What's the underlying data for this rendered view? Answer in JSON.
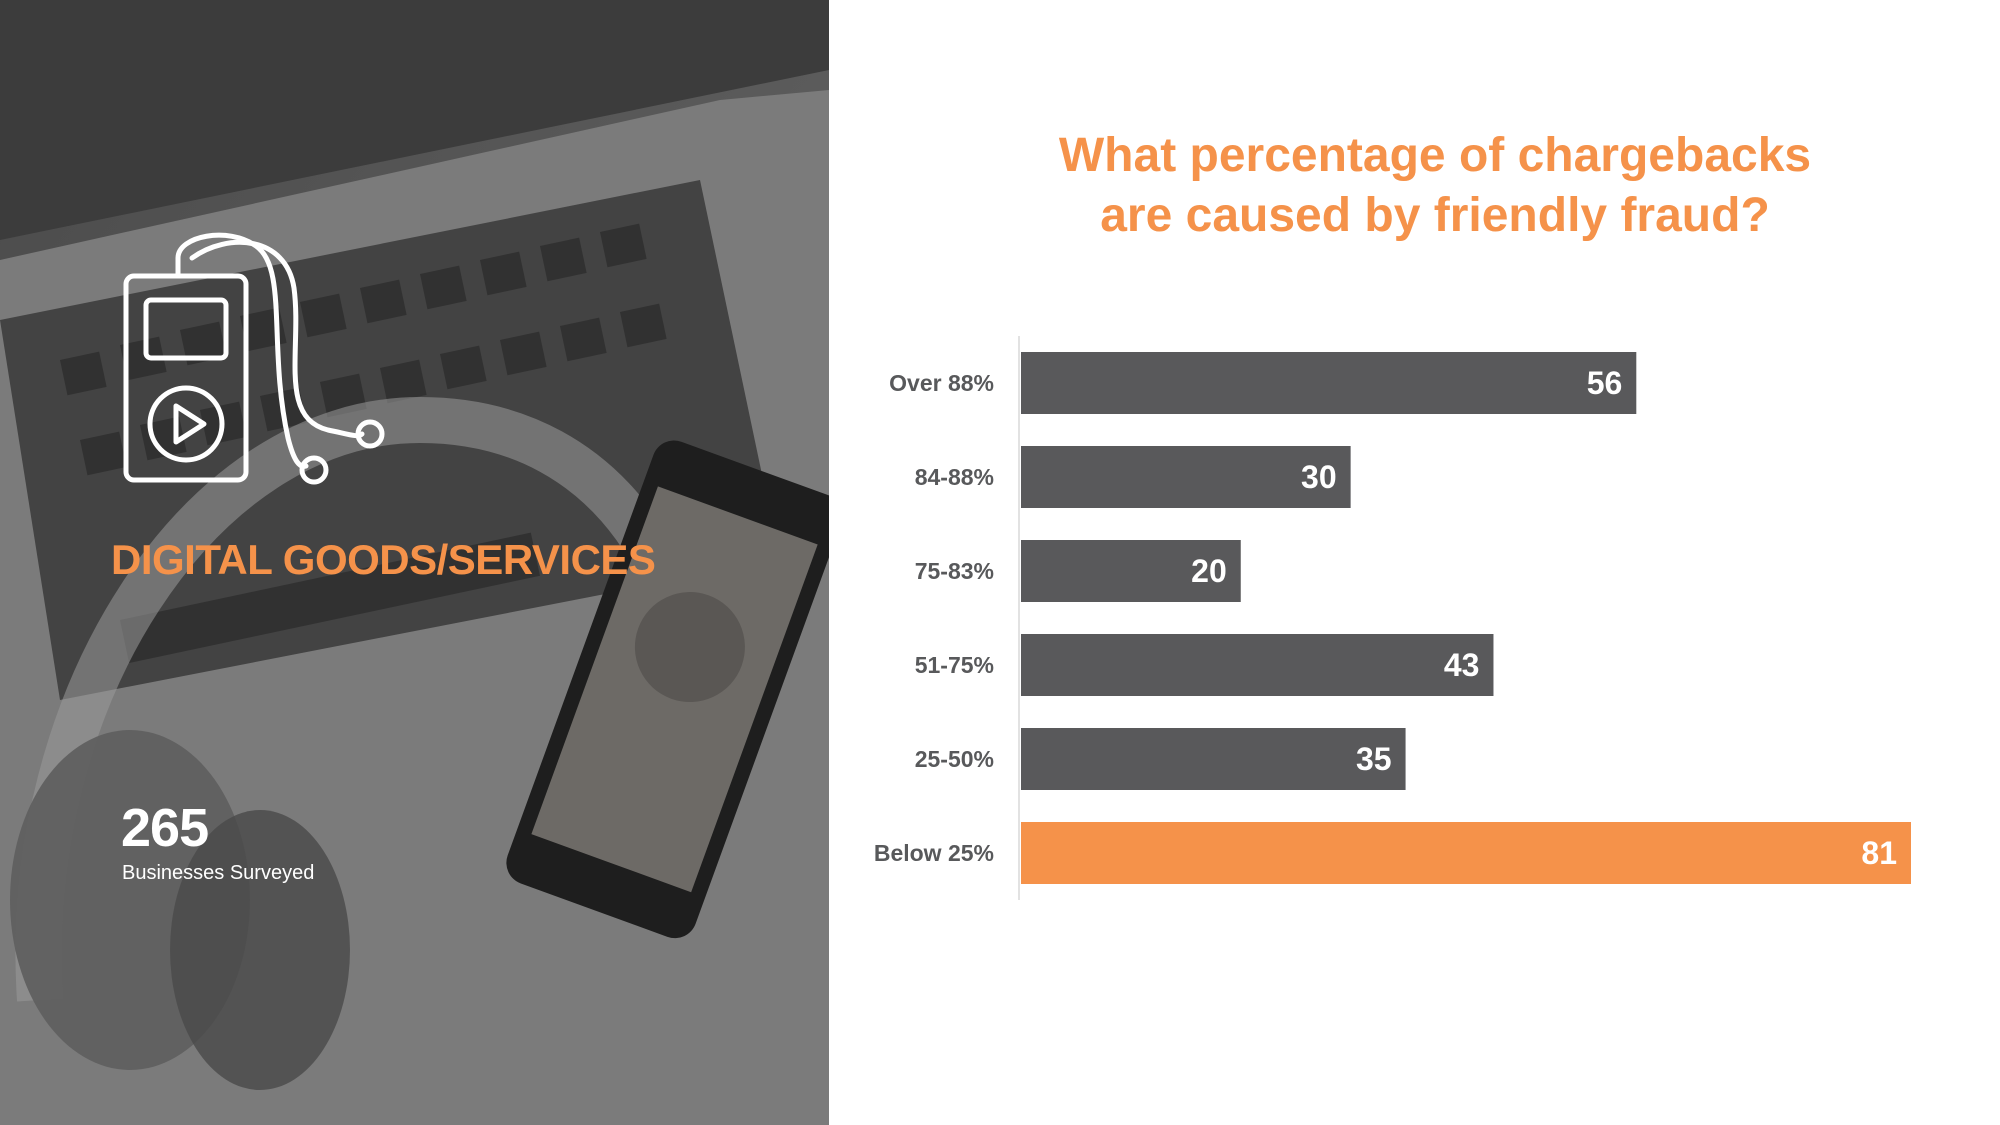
{
  "panel": {
    "category": "DIGITAL GOODS/SERVICES",
    "count": "265",
    "count_label": "Businesses Surveyed",
    "icon": "music-player-icon"
  },
  "colors": {
    "accent": "#F5924A",
    "bar": "#59595B",
    "highlight": "#F5924A",
    "label": "#58595B",
    "panel_bg": "#5B5B5B"
  },
  "chart_data": {
    "type": "bar",
    "orientation": "horizontal",
    "title": [
      "What percentage of chargebacks",
      "are caused by friendly fraud?"
    ],
    "categories": [
      "Over 88%",
      "84-88%",
      "75-83%",
      "51-75%",
      "25-50%",
      "Below 25%"
    ],
    "values": [
      56,
      30,
      20,
      43,
      35,
      81
    ],
    "highlight_index": 5,
    "xlim": [
      0,
      81
    ],
    "grid": false,
    "legend": "none",
    "data_labels": true
  }
}
